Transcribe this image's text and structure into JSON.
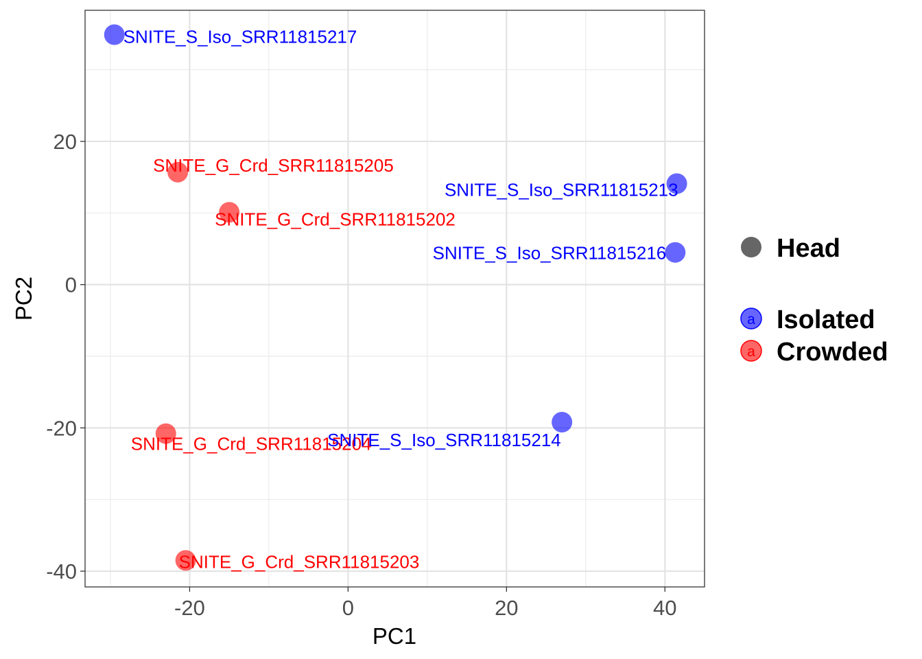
{
  "chart_data": {
    "type": "scatter",
    "xlabel": "PC1",
    "ylabel": "PC2",
    "xlim": [
      -33.2,
      45
    ],
    "ylim": [
      -42.2,
      38.3
    ],
    "xticks": [
      -20,
      0,
      20,
      40
    ],
    "yticks": [
      -40,
      -20,
      0,
      20
    ],
    "grid": true,
    "legend_position": "right",
    "legend_shape": {
      "label": "Head",
      "color": "#666666"
    },
    "legend_groups": [
      {
        "label": "Isolated",
        "color": "#0000ff",
        "key_glyph": "a"
      },
      {
        "label": "Crowded",
        "color": "#ff0000",
        "key_glyph": "a"
      }
    ],
    "points": [
      {
        "label": "SNITE_S_Iso_SRR11815217",
        "x": -29.5,
        "y": 34.9,
        "group": "Isolated"
      },
      {
        "label": "SNITE_G_Crd_SRR11815205",
        "x": -21.5,
        "y": 15.7,
        "group": "Crowded"
      },
      {
        "label": "SNITE_G_Crd_SRR11815202",
        "x": -15.0,
        "y": 10.1,
        "group": "Crowded"
      },
      {
        "label": "SNITE_S_Iso_SRR11815213",
        "x": 41.5,
        "y": 14.1,
        "group": "Isolated"
      },
      {
        "label": "SNITE_S_Iso_SRR11815216",
        "x": 41.3,
        "y": 4.5,
        "group": "Isolated"
      },
      {
        "label": "SNITE_G_Crd_SRR11815204",
        "x": -23.0,
        "y": -20.8,
        "group": "Crowded"
      },
      {
        "label": "SNITE_S_Iso_SRR11815214",
        "x": 27.0,
        "y": -19.2,
        "group": "Isolated"
      },
      {
        "label": "SNITE_G_Crd_SRR11815203",
        "x": -20.5,
        "y": -38.5,
        "group": "Crowded"
      }
    ]
  }
}
